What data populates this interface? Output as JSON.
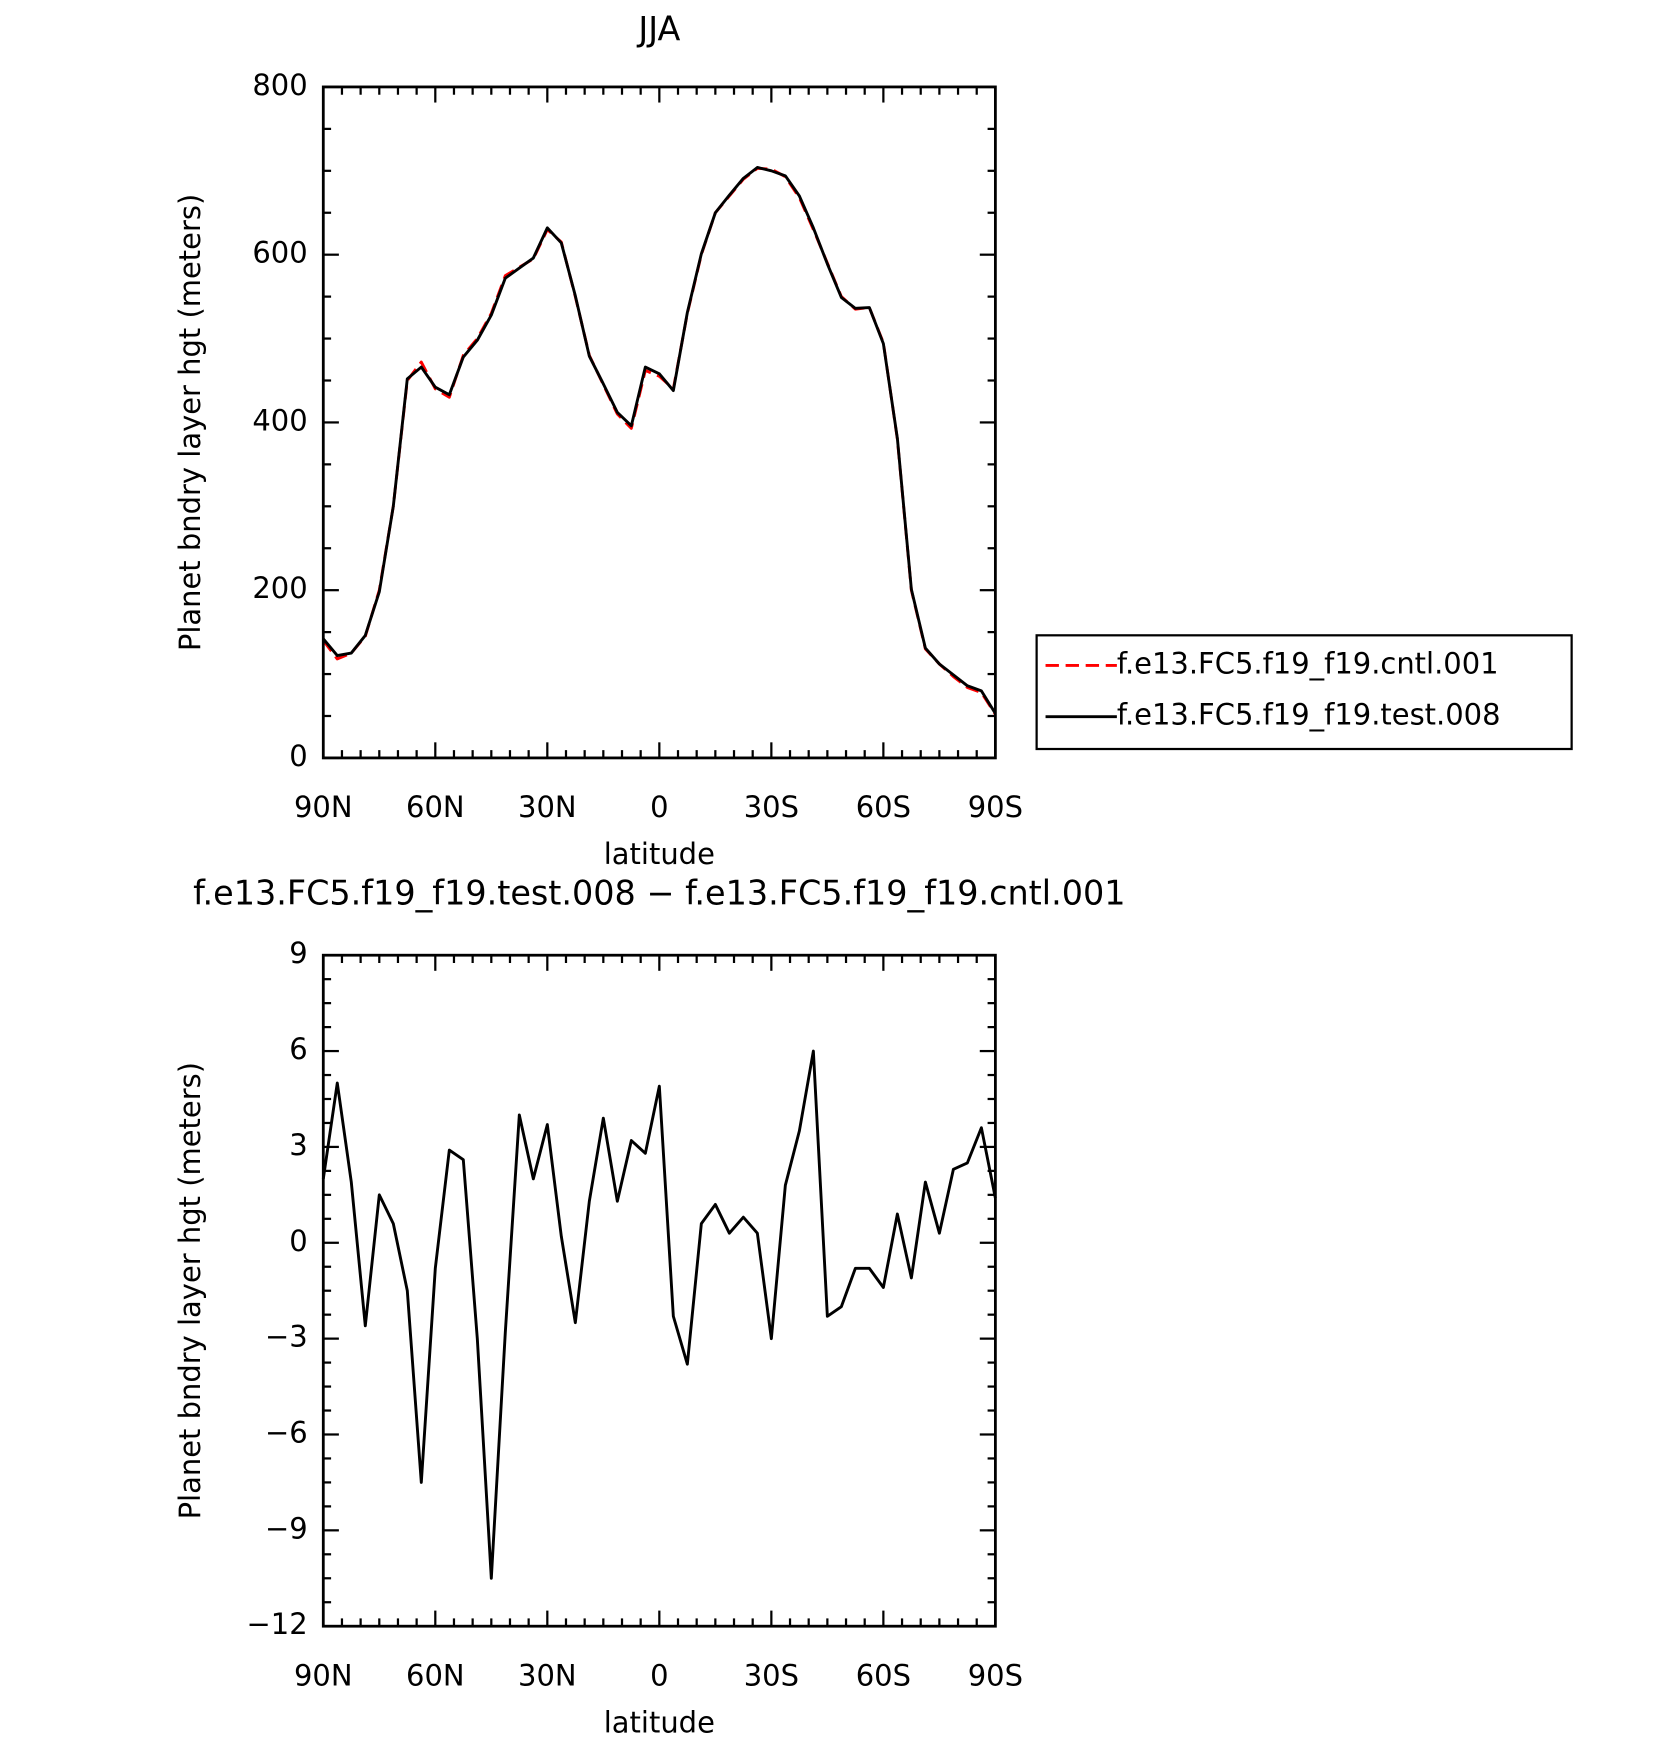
{
  "chart_data": [
    {
      "type": "line",
      "title": "JJA",
      "xlabel": "latitude",
      "ylabel": "Planet bndry layer hgt (meters)",
      "x": [
        90,
        86.25,
        82.5,
        78.75,
        75,
        71.25,
        67.5,
        63.75,
        60,
        56.25,
        52.5,
        48.75,
        45,
        41.25,
        37.5,
        33.75,
        30,
        26.25,
        22.5,
        18.75,
        15,
        11.25,
        7.5,
        3.75,
        0,
        -3.75,
        -7.5,
        -11.25,
        -15,
        -18.75,
        -22.5,
        -26.25,
        -30,
        -33.75,
        -37.5,
        -41.25,
        -45,
        -48.75,
        -52.5,
        -56.25,
        -60,
        -63.75,
        -67.5,
        -71.25,
        -75,
        -78.75,
        -82.5,
        -86.25,
        -90
      ],
      "series": [
        {
          "name": "f.e13.FC5.f19_f19.cntl.001",
          "color": "#ff0000",
          "dash": true,
          "values": [
            140,
            118,
            125,
            145,
            200,
            300,
            450,
            472,
            440,
            430,
            480,
            500,
            530,
            575,
            585,
            595,
            630,
            615,
            550,
            480,
            445,
            410,
            393,
            462,
            455,
            440,
            530,
            600,
            650,
            670,
            690,
            703,
            702,
            693,
            668,
            630,
            590,
            550,
            535,
            537,
            495,
            380,
            200,
            130,
            112,
            97,
            84,
            78,
            52
          ]
        },
        {
          "name": "f.e13.FC5.f19_f19.test.008",
          "color": "#000000",
          "dash": false,
          "values": [
            142,
            122,
            125,
            146,
            198,
            300,
            452,
            466,
            442,
            433,
            478,
            498,
            528,
            572,
            584,
            596,
            632,
            614,
            551,
            479,
            446,
            412,
            396,
            466,
            458,
            438,
            531,
            601,
            650,
            671,
            691,
            704,
            700,
            694,
            670,
            632,
            589,
            549,
            536,
            537,
            494,
            381,
            201,
            131,
            112,
            99,
            86,
            80,
            53
          ]
        }
      ],
      "xlim": [
        90,
        -90
      ],
      "xticks": [
        {
          "value": 90,
          "label": "90N"
        },
        {
          "value": 60,
          "label": "60N"
        },
        {
          "value": 30,
          "label": "30N"
        },
        0,
        {
          "value": -30,
          "label": "30S"
        },
        {
          "value": -60,
          "label": "60S"
        },
        {
          "value": -90,
          "label": "90S"
        }
      ],
      "ylim": [
        0,
        800
      ],
      "yticks": [
        0,
        200,
        400,
        600,
        800
      ],
      "legend": "right"
    },
    {
      "type": "line",
      "title": "f.e13.FC5.f19_f19.test.008 − f.e13.FC5.f19_f19.cntl.001",
      "xlabel": "latitude",
      "ylabel": "Planet bndry layer hgt (meters)",
      "x": [
        90,
        86.25,
        82.5,
        78.75,
        75,
        71.25,
        67.5,
        63.75,
        60,
        56.25,
        52.5,
        48.75,
        45,
        41.25,
        37.5,
        33.75,
        30,
        26.25,
        22.5,
        18.75,
        15,
        11.25,
        7.5,
        3.75,
        0,
        -3.75,
        -7.5,
        -11.25,
        -15,
        -18.75,
        -22.5,
        -26.25,
        -30,
        -33.75,
        -37.5,
        -41.25,
        -45,
        -48.75,
        -52.5,
        -56.25,
        -60,
        -63.75,
        -67.5,
        -71.25,
        -75,
        -78.75,
        -82.5,
        -86.25,
        -90
      ],
      "series": [
        {
          "color": "#000000",
          "dash": false,
          "values": [
            2,
            5,
            1.9,
            -2.6,
            1.5,
            0.6,
            -1.5,
            -7.5,
            -0.8,
            2.9,
            2.6,
            -3,
            -10.5,
            -2.8,
            4,
            2,
            3.7,
            0.2,
            -2.5,
            1.3,
            3.9,
            1.3,
            3.2,
            2.8,
            4.9,
            -2.3,
            -3.8,
            0.6,
            1.2,
            0.3,
            0.8,
            0.3,
            -3,
            1.8,
            3.5,
            6,
            -2.3,
            -2,
            -0.8,
            -0.8,
            -1.4,
            0.9,
            -1.1,
            1.9,
            0.3,
            2.3,
            2.5,
            3.6,
            1.4
          ]
        }
      ],
      "xlim": [
        90,
        -90
      ],
      "xticks": [
        {
          "value": 90,
          "label": "90N"
        },
        {
          "value": 60,
          "label": "60N"
        },
        {
          "value": 30,
          "label": "30N"
        },
        0,
        {
          "value": -30,
          "label": "30S"
        },
        {
          "value": -60,
          "label": "60S"
        },
        {
          "value": -90,
          "label": "90S"
        }
      ],
      "ylim": [
        -12,
        9
      ],
      "yticks": [
        {
          "value": -12,
          "label": "−12"
        },
        {
          "value": -9,
          "label": "−9"
        },
        {
          "value": -6,
          "label": "−6"
        },
        {
          "value": -3,
          "label": "−3"
        },
        0,
        3,
        6,
        9
      ]
    }
  ]
}
